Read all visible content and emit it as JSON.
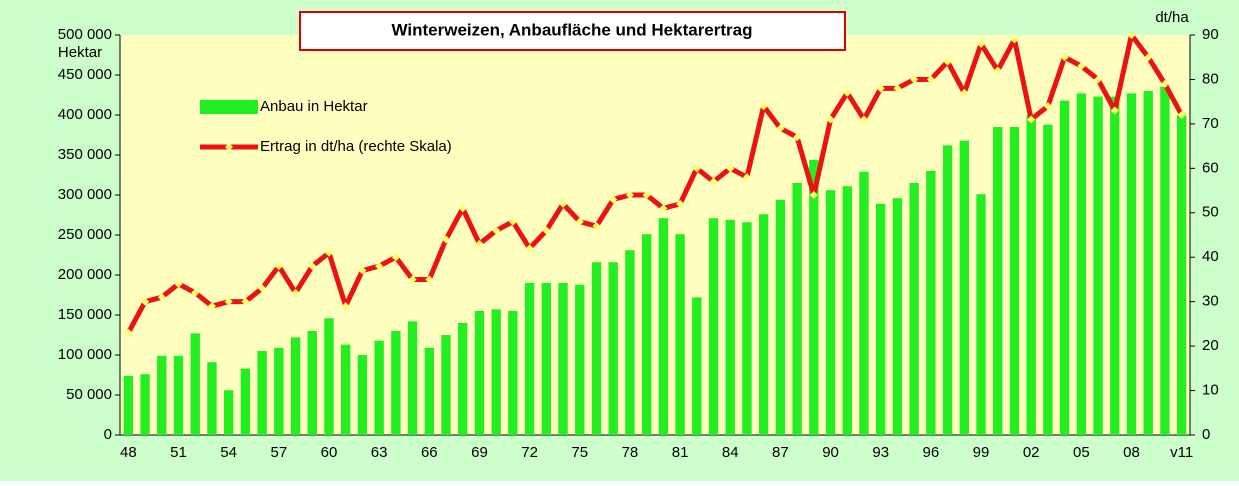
{
  "chart_data": {
    "type": "bar_line",
    "title": "Winterweizen, Anbaufläche und Hektarertrag",
    "y_label": "Hektar",
    "y2_label": "dt/ha",
    "categories": [
      "48",
      null,
      null,
      "51",
      null,
      null,
      "54",
      null,
      null,
      "57",
      null,
      null,
      "60",
      null,
      null,
      "63",
      null,
      null,
      "66",
      null,
      null,
      "69",
      null,
      null,
      "72",
      null,
      null,
      "75",
      null,
      null,
      "78",
      null,
      null,
      "81",
      null,
      null,
      "84",
      null,
      null,
      "87",
      null,
      null,
      "90",
      null,
      null,
      "93",
      null,
      null,
      "96",
      null,
      null,
      "99",
      null,
      null,
      "02",
      null,
      null,
      "05",
      null,
      null,
      "08",
      null,
      null,
      "v11"
    ],
    "series": [
      {
        "name": "Anbau in Hektar",
        "type": "bar",
        "color": "#22ee22",
        "axis": "y",
        "values": [
          74000,
          76000,
          99000,
          99000,
          127000,
          91000,
          56000,
          83000,
          105000,
          109000,
          122000,
          130000,
          146000,
          113000,
          100000,
          118000,
          130000,
          142000,
          109000,
          125000,
          140000,
          155000,
          157000,
          155000,
          190000,
          190000,
          190000,
          188000,
          216000,
          216000,
          231000,
          251000,
          271000,
          251000,
          172000,
          271000,
          269000,
          266000,
          276000,
          294000,
          315000,
          344000,
          306000,
          311000,
          329000,
          289000,
          296000,
          315000,
          330000,
          362000,
          368000,
          301000,
          385000,
          385000,
          400000,
          388000,
          418000,
          427000,
          423000,
          423000,
          427000,
          430000,
          435000,
          400000
        ]
      },
      {
        "name": "Ertrag in dt/ha (rechte Skala)",
        "type": "line",
        "color": "#ee1111",
        "marker_color": "#ffff66",
        "axis": "y2",
        "values": [
          23,
          30,
          31,
          34,
          32,
          29,
          30,
          30,
          33,
          38,
          32,
          38,
          41,
          29,
          37,
          38,
          40,
          35,
          35,
          44,
          51,
          43,
          46,
          48,
          42,
          46,
          52,
          48,
          47,
          53,
          54,
          54,
          51,
          52,
          60,
          57,
          60,
          58,
          74,
          69,
          67,
          54,
          71,
          77,
          71,
          78,
          78,
          80,
          80,
          84,
          77,
          88,
          82,
          89,
          71,
          74,
          85,
          83,
          80,
          73,
          90,
          85,
          79,
          72
        ]
      }
    ],
    "ylim": [
      0,
      500000
    ],
    "yticks": [
      0,
      {
        "value": 50000,
        "label": "50 000"
      },
      {
        "value": 100000,
        "label": "100 000"
      },
      {
        "value": 150000,
        "label": "150 000"
      },
      {
        "value": 200000,
        "label": "200 000"
      },
      {
        "value": 250000,
        "label": "250 000"
      },
      {
        "value": 300000,
        "label": "300 000"
      },
      {
        "value": 350000,
        "label": "350 000"
      },
      {
        "value": 400000,
        "label": "400 000"
      },
      {
        "value": 450000,
        "label": "450 000"
      },
      {
        "value": 500000,
        "label": "500 000"
      }
    ],
    "y2lim": [
      0,
      90
    ],
    "y2ticks": [
      0,
      10,
      20,
      30,
      40,
      50,
      60,
      70,
      80,
      90
    ],
    "grid": false,
    "legend": "upper left"
  }
}
